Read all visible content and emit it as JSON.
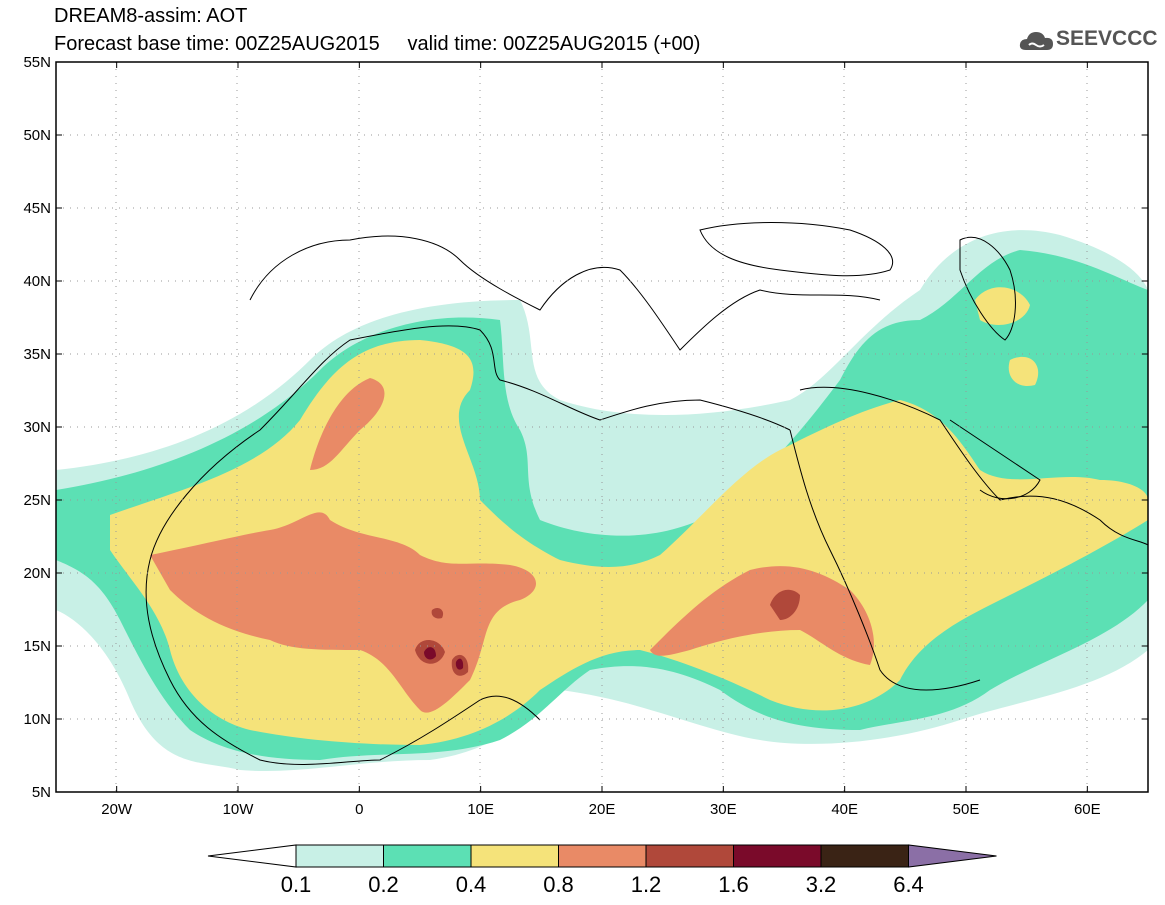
{
  "header": {
    "title_line1": "DREAM8-assim: AOT",
    "base_time_label": "Forecast base time: 00Z25AUG2015",
    "valid_time_label": "valid time: 00Z25AUG2015 (+00)",
    "logo_text": "SEEVCCC",
    "logo_icon": "cloud-icon"
  },
  "map": {
    "lat_ticks": [
      "55N",
      "50N",
      "45N",
      "40N",
      "35N",
      "30N",
      "25N",
      "20N",
      "15N",
      "10N",
      "5N"
    ],
    "lon_ticks": [
      "20W",
      "10W",
      "0",
      "10E",
      "20E",
      "30E",
      "40E",
      "50E",
      "60E"
    ],
    "extent": {
      "lon_min": -25,
      "lon_max": 65,
      "lat_min": 5,
      "lat_max": 55
    }
  },
  "colorbar": {
    "labels": [
      "0.1",
      "0.2",
      "0.4",
      "0.8",
      "1.2",
      "1.6",
      "3.2",
      "6.4"
    ],
    "colors": [
      "#c8f0e6",
      "#5ce0b4",
      "#f5e37a",
      "#e98a66",
      "#b0483a",
      "#7a0a2a",
      "#3a2315",
      "#8b6fa6"
    ],
    "under_color": "#ffffff",
    "over_color": "#8b6fa6"
  }
}
